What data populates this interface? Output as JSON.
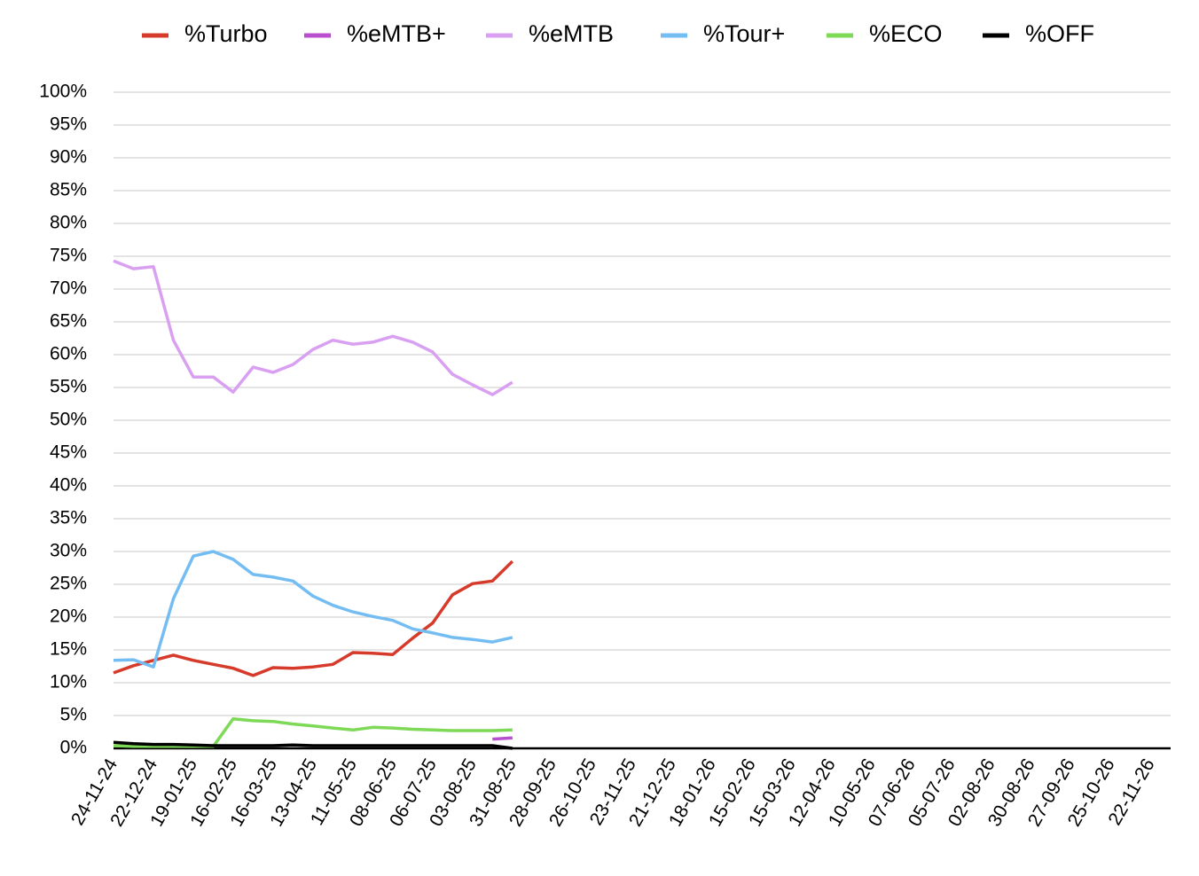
{
  "chart_data": {
    "type": "line",
    "categories": [
      "24-11-24",
      null,
      "22-12-24",
      null,
      "19-01-25",
      null,
      "16-02-25",
      null,
      "16-03-25",
      null,
      "13-04-25",
      null,
      "11-05-25",
      null,
      "08-06-25",
      null,
      "06-07-25",
      null,
      "03-08-25",
      null,
      "31-08-25",
      null,
      "28-09-25",
      null,
      "26-10-25",
      null,
      "23-11-25",
      null,
      "21-12-25",
      null,
      "18-01-26",
      null,
      "15-02-26",
      null,
      "15-03-26",
      null,
      "12-04-26",
      null,
      "10-05-26",
      null,
      "07-06-26",
      null,
      "05-07-26",
      null,
      "02-08-26",
      null,
      "30-08-26",
      null,
      "27-09-26",
      null,
      "25-10-26",
      null,
      "22-11-26",
      null
    ],
    "series": [
      {
        "name": "%Turbo",
        "color": "#d63a2b",
        "values": [
          11.5,
          12.6,
          13.4,
          14.2,
          13.4,
          12.8,
          12.2,
          11.1,
          12.3,
          12.2,
          12.4,
          12.8,
          14.6,
          14.5,
          14.3,
          16.8,
          19.1,
          23.4,
          25.1,
          25.5,
          28.5,
          null,
          null,
          null,
          null,
          null,
          null,
          null,
          null,
          null,
          null,
          null,
          null,
          null,
          null,
          null,
          null,
          null,
          null,
          null,
          null,
          null,
          null,
          null,
          null,
          null,
          null,
          null,
          null,
          null,
          null,
          null,
          null,
          null
        ]
      },
      {
        "name": "%eMTB+",
        "color": "#b84fcf",
        "values": [
          null,
          null,
          null,
          null,
          null,
          null,
          null,
          null,
          null,
          null,
          null,
          null,
          null,
          null,
          null,
          null,
          null,
          null,
          null,
          1.4,
          1.6,
          null,
          null,
          null,
          null,
          null,
          null,
          null,
          null,
          null,
          null,
          null,
          null,
          null,
          null,
          null,
          null,
          null,
          null,
          null,
          null,
          null,
          null,
          null,
          null,
          null,
          null,
          null,
          null,
          null,
          null,
          null,
          null,
          null
        ]
      },
      {
        "name": "%eMTB",
        "color": "#d9a0f2",
        "values": [
          74.3,
          73.1,
          73.4,
          62.2,
          56.6,
          56.6,
          54.3,
          58.1,
          57.3,
          58.5,
          60.8,
          62.2,
          61.6,
          61.9,
          62.8,
          61.9,
          60.4,
          57.0,
          55.4,
          53.9,
          55.8,
          null,
          null,
          null,
          null,
          null,
          null,
          null,
          null,
          null,
          null,
          null,
          null,
          null,
          null,
          null,
          null,
          null,
          null,
          null,
          null,
          null,
          null,
          null,
          null,
          null,
          null,
          null,
          null,
          null,
          null,
          null,
          null,
          null
        ]
      },
      {
        "name": "%Tour+",
        "color": "#74bdf2",
        "values": [
          13.4,
          13.5,
          12.4,
          22.8,
          29.3,
          30.0,
          28.8,
          26.5,
          26.1,
          25.5,
          23.2,
          21.8,
          20.8,
          20.1,
          19.5,
          18.2,
          17.6,
          16.9,
          16.6,
          16.2,
          16.9,
          null,
          null,
          null,
          null,
          null,
          null,
          null,
          null,
          null,
          null,
          null,
          null,
          null,
          null,
          null,
          null,
          null,
          null,
          null,
          null,
          null,
          null,
          null,
          null,
          null,
          null,
          null,
          null,
          null,
          null,
          null,
          null,
          null
        ]
      },
      {
        "name": "%ECO",
        "color": "#7ed957",
        "values": [
          0.4,
          0.3,
          0.3,
          0.3,
          0.3,
          0.3,
          4.5,
          4.2,
          4.1,
          3.7,
          3.4,
          3.1,
          2.8,
          3.2,
          3.1,
          2.9,
          2.8,
          2.7,
          2.7,
          2.7,
          2.8,
          null,
          null,
          null,
          null,
          null,
          null,
          null,
          null,
          null,
          null,
          null,
          null,
          null,
          null,
          null,
          null,
          null,
          null,
          null,
          null,
          null,
          null,
          null,
          null,
          null,
          null,
          null,
          null,
          null,
          null,
          null,
          null,
          null
        ]
      },
      {
        "name": "%OFF",
        "color": "#000000",
        "values": [
          0.9,
          0.7,
          0.6,
          0.6,
          0.5,
          0.4,
          0.4,
          0.4,
          0.4,
          0.5,
          0.4,
          0.4,
          0.4,
          0.4,
          0.4,
          0.4,
          0.4,
          0.4,
          0.4,
          0.4,
          0,
          null,
          null,
          null,
          null,
          null,
          null,
          null,
          null,
          null,
          null,
          null,
          null,
          null,
          null,
          null,
          null,
          null,
          null,
          null,
          null,
          null,
          null,
          null,
          null,
          null,
          null,
          null,
          null,
          null,
          null,
          null,
          null,
          null
        ]
      }
    ],
    "ylim": [
      0,
      100
    ],
    "yticks": [
      {
        "value": 0,
        "label": "0%"
      },
      {
        "value": 5,
        "label": "5%"
      },
      {
        "value": 10,
        "label": "10%"
      },
      {
        "value": 15,
        "label": "15%"
      },
      {
        "value": 20,
        "label": "20%"
      },
      {
        "value": 25,
        "label": "25%"
      },
      {
        "value": 30,
        "label": "30%"
      },
      {
        "value": 35,
        "label": "35%"
      },
      {
        "value": 40,
        "label": "40%"
      },
      {
        "value": 45,
        "label": "45%"
      },
      {
        "value": 50,
        "label": "50%"
      },
      {
        "value": 55,
        "label": "55%"
      },
      {
        "value": 60,
        "label": "60%"
      },
      {
        "value": 65,
        "label": "65%"
      },
      {
        "value": 70,
        "label": "70%"
      },
      {
        "value": 75,
        "label": "75%"
      },
      {
        "value": 80,
        "label": "80%"
      },
      {
        "value": 85,
        "label": "85%"
      },
      {
        "value": 90,
        "label": "90%"
      },
      {
        "value": 95,
        "label": "95%"
      },
      {
        "value": 100,
        "label": "100%"
      }
    ],
    "grid": true,
    "legend": "top"
  }
}
